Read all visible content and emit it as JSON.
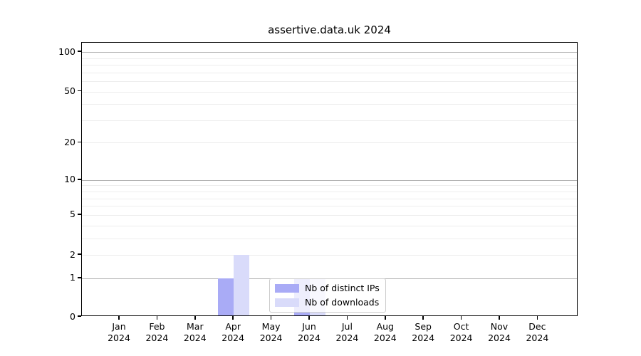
{
  "title": "assertive.data.uk 2024",
  "chart_data": {
    "type": "bar",
    "title": "assertive.data.uk 2024",
    "x_unit": "month",
    "year": "2024",
    "categories": [
      "Jan",
      "Feb",
      "Mar",
      "Apr",
      "May",
      "Jun",
      "Jul",
      "Aug",
      "Sep",
      "Oct",
      "Nov",
      "Dec"
    ],
    "series": [
      {
        "name": "Nb of distinct IPs",
        "color": "#a9abf6",
        "values": [
          0,
          0,
          0,
          1,
          0,
          1,
          0,
          0,
          0,
          0,
          0,
          0
        ]
      },
      {
        "name": "Nb of downloads",
        "color": "#d9dbfa",
        "values": [
          0,
          0,
          0,
          2,
          0,
          1,
          0,
          0,
          0,
          0,
          0,
          0
        ]
      }
    ],
    "yscale": "log1p",
    "ylim": [
      0,
      118
    ],
    "y_tick_values": [
      0,
      1,
      2,
      5,
      10,
      20,
      50,
      100
    ],
    "y_major_gridlines": [
      1,
      10,
      100
    ],
    "y_minor_gridlines": [
      2,
      3,
      4,
      5,
      6,
      7,
      8,
      9,
      20,
      30,
      40,
      50,
      60,
      70,
      80,
      90
    ],
    "grid": true,
    "legend": {
      "position": "lower-center",
      "items": [
        "Nb of distinct IPs",
        "Nb of downloads"
      ]
    }
  },
  "colors": {
    "background": "#ffffff",
    "axis": "#000000",
    "grid_major": "#b3b3b3",
    "grid_minor": "#ededed",
    "bar_distinct_ips": "#a9abf6",
    "bar_downloads": "#d9dbfa",
    "legend_border": "#cccccc"
  }
}
